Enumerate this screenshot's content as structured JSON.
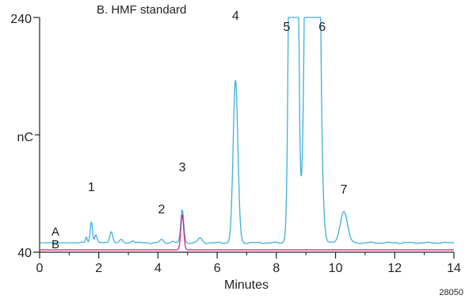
{
  "chart_data": {
    "type": "line",
    "title": "B. HMF standard",
    "xlabel": "Minutes",
    "ylabel": "nC",
    "figure_id": "28050",
    "xlim": [
      0,
      14
    ],
    "ylim": [
      40,
      240
    ],
    "x_ticks": [
      0,
      2,
      4,
      6,
      8,
      10,
      12,
      14
    ],
    "y_tick_labels": [
      "240",
      "40"
    ],
    "colors": {
      "A": "#3fb0d9",
      "B": "#d6287f",
      "axis": "#231f20"
    },
    "series": [
      {
        "name": "A",
        "baseline": 48,
        "peaks": [
          {
            "x": 1.58,
            "h": 5,
            "w": 0.03
          },
          {
            "x": 1.75,
            "h": 18,
            "w": 0.04
          },
          {
            "x": 1.9,
            "h": 7,
            "w": 0.04
          },
          {
            "x": 2.42,
            "h": 10,
            "w": 0.05
          },
          {
            "x": 2.75,
            "h": 2.5,
            "w": 0.05
          },
          {
            "x": 3.15,
            "h": 2,
            "w": 0.05
          },
          {
            "x": 4.12,
            "h": 2.5,
            "w": 0.06
          },
          {
            "x": 4.5,
            "h": 1.5,
            "w": 0.05
          },
          {
            "x": 4.82,
            "h": 28,
            "w": 0.05
          },
          {
            "x": 5.42,
            "h": 4,
            "w": 0.07
          },
          {
            "x": 6.62,
            "h": 138,
            "w": 0.08
          },
          {
            "x": 8.58,
            "h": 1400,
            "w": 0.09
          },
          {
            "x": 9.22,
            "h": 1400,
            "w": 0.14
          },
          {
            "x": 10.28,
            "h": 27,
            "w": 0.12
          }
        ]
      },
      {
        "name": "B",
        "baseline": 42,
        "peaks": [
          {
            "x": 4.82,
            "h": 30,
            "w": 0.048
          }
        ]
      }
    ],
    "peak_labels": [
      {
        "label": "1",
        "x": 1.75,
        "y": 88
      },
      {
        "label": "2",
        "x": 4.12,
        "y": 69
      },
      {
        "label": "3",
        "x": 4.82,
        "y": 105
      },
      {
        "label": "4",
        "x": 6.62,
        "y": 234
      },
      {
        "label": "5",
        "x": 8.35,
        "y": 406
      },
      {
        "label": "6",
        "x": 9.55,
        "y": 406
      },
      {
        "label": "7",
        "x": 10.28,
        "y": 86
      }
    ],
    "grid": false,
    "legend": "inline trace labels at left"
  }
}
